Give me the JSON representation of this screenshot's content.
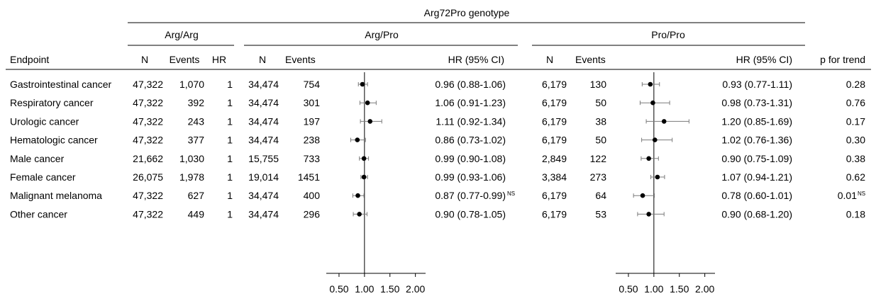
{
  "header": {
    "genotype_title": "Arg72Pro genotype",
    "group1": "Arg/Arg",
    "group2": "Arg/Pro",
    "group3": "Pro/Pro"
  },
  "columns": {
    "endpoint": "Endpoint",
    "n": "N",
    "events": "Events",
    "hr": "HR",
    "hr_ci": "HR (95% CI)",
    "p_trend": "p for trend"
  },
  "rows": [
    {
      "endpoint": "Gastrointestinal cancer",
      "n1": "47,322",
      "ev1": "1,070",
      "hr1": "1",
      "n2": "34,474",
      "ev2": "754",
      "ci2": "0.96 (0.88-1.06)",
      "ci2_sup": "",
      "n3": "6,179",
      "ev3": "130",
      "ci3": "0.93 (0.77-1.11)",
      "p": "0.28",
      "p_sup": ""
    },
    {
      "endpoint": "Respiratory cancer",
      "n1": "47,322",
      "ev1": "392",
      "hr1": "1",
      "n2": "34,474",
      "ev2": "301",
      "ci2": "1.06 (0.91-1.23)",
      "ci2_sup": "",
      "n3": "6,179",
      "ev3": "50",
      "ci3": "0.98 (0.73-1.31)",
      "p": "0.76",
      "p_sup": ""
    },
    {
      "endpoint": "Urologic cancer",
      "n1": "47,322",
      "ev1": "243",
      "hr1": "1",
      "n2": "34,474",
      "ev2": "197",
      "ci2": "1.11 (0.92-1.34)",
      "ci2_sup": "",
      "n3": "6,179",
      "ev3": "38",
      "ci3": "1.20 (0.85-1.69)",
      "p": "0.17",
      "p_sup": ""
    },
    {
      "endpoint": "Hematologic cancer",
      "n1": "47,322",
      "ev1": "377",
      "hr1": "1",
      "n2": "34,474",
      "ev2": "238",
      "ci2": "0.86 (0.73-1.02)",
      "ci2_sup": "",
      "n3": "6,179",
      "ev3": "50",
      "ci3": "1.02 (0.76-1.36)",
      "p": "0.30",
      "p_sup": ""
    },
    {
      "endpoint": "Male cancer",
      "n1": "21,662",
      "ev1": "1,030",
      "hr1": "1",
      "n2": "15,755",
      "ev2": "733",
      "ci2": "0.99 (0.90-1.08)",
      "ci2_sup": "",
      "n3": "2,849",
      "ev3": "122",
      "ci3": "0.90 (0.75-1.09)",
      "p": "0.38",
      "p_sup": ""
    },
    {
      "endpoint": "Female cancer",
      "n1": "26,075",
      "ev1": "1,978",
      "hr1": "1",
      "n2": "19,014",
      "ev2": "1451",
      "ci2": "0.99 (0.93-1.06)",
      "ci2_sup": "",
      "n3": "3,384",
      "ev3": "273",
      "ci3": "1.07 (0.94-1.21)",
      "p": "0.62",
      "p_sup": ""
    },
    {
      "endpoint": "Malignant melanoma",
      "n1": "47,322",
      "ev1": "627",
      "hr1": "1",
      "n2": "34,474",
      "ev2": "400",
      "ci2": "0.87 (0.77-0.99)",
      "ci2_sup": "NS",
      "n3": "6,179",
      "ev3": "64",
      "ci3": "0.78 (0.60-1.01)",
      "p": "0.01",
      "p_sup": "NS"
    },
    {
      "endpoint": "Other cancer",
      "n1": "47,322",
      "ev1": "449",
      "hr1": "1",
      "n2": "34,474",
      "ev2": "296",
      "ci2": "0.90 (0.78-1.05)",
      "ci2_sup": "",
      "n3": "6,179",
      "ev3": "53",
      "ci3": "0.90 (0.68-1.20)",
      "p": "0.18",
      "p_sup": ""
    }
  ],
  "chart_data": [
    {
      "type": "scatter",
      "series": [
        {
          "name": "Arg/Pro",
          "values": [
            {
              "category": "Gastrointestinal cancer",
              "hr": 0.96,
              "lo": 0.88,
              "hi": 1.06
            },
            {
              "category": "Respiratory cancer",
              "hr": 1.06,
              "lo": 0.91,
              "hi": 1.23
            },
            {
              "category": "Urologic cancer",
              "hr": 1.11,
              "lo": 0.92,
              "hi": 1.34
            },
            {
              "category": "Hematologic cancer",
              "hr": 0.86,
              "lo": 0.73,
              "hi": 1.02
            },
            {
              "category": "Male cancer",
              "hr": 0.99,
              "lo": 0.9,
              "hi": 1.08
            },
            {
              "category": "Female cancer",
              "hr": 0.99,
              "lo": 0.93,
              "hi": 1.06
            },
            {
              "category": "Malignant melanoma",
              "hr": 0.87,
              "lo": 0.77,
              "hi": 0.99
            },
            {
              "category": "Other cancer",
              "hr": 0.9,
              "lo": 0.78,
              "hi": 1.05
            }
          ]
        }
      ],
      "xlim": [
        0.25,
        2.2
      ],
      "xticks": [
        0.5,
        1.0,
        1.5,
        2.0
      ],
      "xtick_labels": [
        "0.50",
        "1.00",
        "1.50",
        "2.00"
      ],
      "reference_line": 1.0,
      "grid": false
    },
    {
      "type": "scatter",
      "series": [
        {
          "name": "Pro/Pro",
          "values": [
            {
              "category": "Gastrointestinal cancer",
              "hr": 0.93,
              "lo": 0.77,
              "hi": 1.11
            },
            {
              "category": "Respiratory cancer",
              "hr": 0.98,
              "lo": 0.73,
              "hi": 1.31
            },
            {
              "category": "Urologic cancer",
              "hr": 1.2,
              "lo": 0.85,
              "hi": 1.69
            },
            {
              "category": "Hematologic cancer",
              "hr": 1.02,
              "lo": 0.76,
              "hi": 1.36
            },
            {
              "category": "Male cancer",
              "hr": 0.9,
              "lo": 0.75,
              "hi": 1.09
            },
            {
              "category": "Female cancer",
              "hr": 1.07,
              "lo": 0.94,
              "hi": 1.21
            },
            {
              "category": "Malignant melanoma",
              "hr": 0.78,
              "lo": 0.6,
              "hi": 1.01
            },
            {
              "category": "Other cancer",
              "hr": 0.9,
              "lo": 0.68,
              "hi": 1.2
            }
          ]
        }
      ],
      "xlim": [
        0.25,
        2.2
      ],
      "xticks": [
        0.5,
        1.0,
        1.5,
        2.0
      ],
      "xtick_labels": [
        "0.50",
        "1.00",
        "1.50",
        "2.00"
      ],
      "reference_line": 1.0,
      "grid": false
    }
  ]
}
